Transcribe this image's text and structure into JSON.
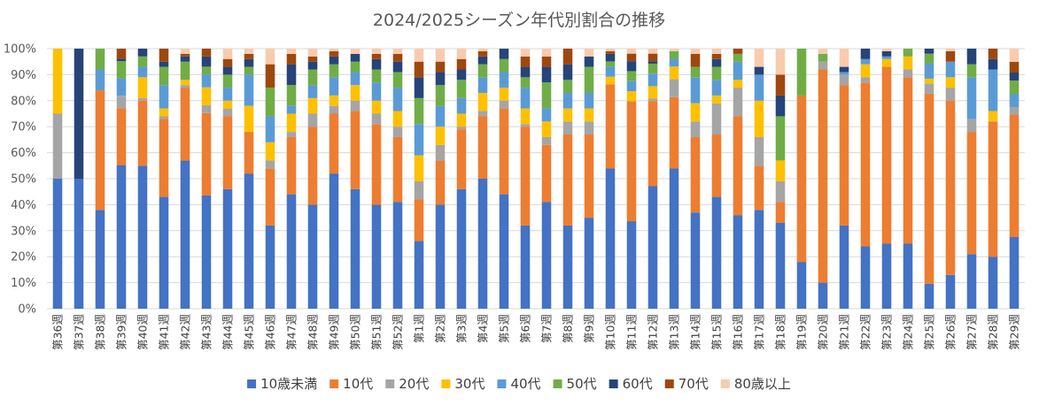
{
  "chart_data": {
    "type": "bar",
    "stacked": true,
    "title": "2024/2025シーズン年代別割合の推移",
    "xlabel": "",
    "ylabel": "",
    "ylim": [
      0,
      100
    ],
    "y_ticks": [
      "0%",
      "10%",
      "20%",
      "30%",
      "40%",
      "50%",
      "60%",
      "70%",
      "80%",
      "90%",
      "100%"
    ],
    "grid": true,
    "legend_position": "bottom",
    "categories": [
      "第36週",
      "第37週",
      "第38週",
      "第39週",
      "第40週",
      "第41週",
      "第42週",
      "第43週",
      "第44週",
      "第45週",
      "第46週",
      "第47週",
      "第48週",
      "第49週",
      "第50週",
      "第51週",
      "第52週",
      "第1週",
      "第2週",
      "第3週",
      "第4週",
      "第5週",
      "第6週",
      "第7週",
      "第8週",
      "第9週",
      "第10週",
      "第11週",
      "第12週",
      "第13週",
      "第14週",
      "第15週",
      "第16週",
      "第17週",
      "第18週",
      "第19週",
      "第20週",
      "第21週",
      "第22週",
      "第23週",
      "第24週",
      "第25週",
      "第26週",
      "第27週",
      "第28週",
      "第29週"
    ],
    "series": [
      {
        "name": "10歳未満",
        "color": "#4472c4",
        "values": [
          50,
          50,
          38,
          58,
          55,
          43,
          57,
          44,
          46,
          52,
          32,
          44,
          40,
          52,
          46,
          40,
          41,
          26,
          40,
          46,
          50,
          44,
          32,
          41,
          32,
          35,
          55,
          35,
          49,
          55,
          37,
          43,
          36,
          38,
          33,
          18,
          10,
          32,
          24,
          25,
          25,
          10,
          13,
          21,
          20,
          27
        ]
      },
      {
        "name": "10代",
        "color": "#ed7d31",
        "values": [
          0,
          0,
          46,
          23,
          25,
          30,
          28,
          32,
          28,
          16,
          22,
          22,
          30,
          23,
          30,
          31,
          25,
          16,
          17,
          23,
          24,
          33,
          38,
          22,
          35,
          32,
          33,
          48,
          34,
          28,
          29,
          24,
          38,
          17,
          8,
          64,
          82,
          54,
          63,
          68,
          64,
          76,
          67,
          47,
          52,
          46
        ]
      },
      {
        "name": "20代",
        "color": "#a5a5a5",
        "values": [
          25,
          0,
          0,
          5,
          1,
          1,
          1,
          3,
          3,
          0,
          3,
          2,
          5,
          3,
          4,
          4,
          4,
          7,
          6,
          1,
          2,
          3,
          1,
          3,
          5,
          5,
          0,
          0,
          1,
          7,
          6,
          12,
          11,
          11,
          8,
          0,
          3,
          4,
          2,
          0,
          3,
          4,
          5,
          5,
          0,
          3
        ]
      },
      {
        "name": "30代",
        "color": "#ffc000",
        "values": [
          25,
          0,
          0,
          0,
          8,
          3,
          2,
          7,
          3,
          10,
          7,
          7,
          6,
          4,
          6,
          5,
          6,
          10,
          7,
          5,
          7,
          5,
          6,
          6,
          5,
          5,
          3,
          4,
          5,
          5,
          7,
          3,
          3,
          14,
          8,
          0,
          0,
          0,
          5,
          3,
          5,
          2,
          4,
          0,
          4,
          0
        ]
      },
      {
        "name": "40代",
        "color": "#5b9bd5",
        "values": [
          0,
          0,
          8,
          7,
          4,
          9,
          0,
          5,
          5,
          12,
          10,
          3,
          5,
          7,
          5,
          7,
          9,
          12,
          8,
          6,
          6,
          6,
          8,
          5,
          6,
          6,
          4,
          4,
          5,
          3,
          10,
          6,
          7,
          10,
          0,
          0,
          0,
          1,
          2,
          1,
          0,
          6,
          6,
          16,
          16,
          5
        ]
      },
      {
        "name": "50代",
        "color": "#70ad47",
        "values": [
          0,
          0,
          8,
          7,
          4,
          7,
          7,
          3,
          5,
          3,
          11,
          8,
          6,
          5,
          4,
          5,
          6,
          10,
          8,
          7,
          5,
          5,
          4,
          10,
          5,
          10,
          2,
          4,
          4,
          3,
          4,
          5,
          3,
          0,
          17,
          18,
          3,
          0,
          0,
          0,
          3,
          4,
          0,
          5,
          0,
          5
        ]
      },
      {
        "name": "60代",
        "color": "#264478",
        "values": [
          0,
          50,
          0,
          1,
          3,
          2,
          2,
          4,
          3,
          3,
          0,
          8,
          3,
          3,
          3,
          4,
          4,
          8,
          5,
          4,
          3,
          4,
          4,
          6,
          6,
          4,
          3,
          4,
          1,
          0,
          0,
          3,
          0,
          3,
          8,
          0,
          0,
          2,
          4,
          2,
          0,
          2,
          0,
          6,
          4,
          3
        ]
      },
      {
        "name": "70代",
        "color": "#9e480e",
        "values": [
          0,
          0,
          0,
          4,
          0,
          5,
          1,
          3,
          3,
          2,
          9,
          4,
          2,
          2,
          0,
          2,
          3,
          6,
          4,
          4,
          2,
          0,
          4,
          4,
          6,
          0,
          1,
          3,
          3,
          0,
          5,
          2,
          2,
          0,
          8,
          0,
          0,
          0,
          0,
          0,
          0,
          0,
          4,
          0,
          4,
          4
        ]
      },
      {
        "name": "80歳以上",
        "color": "#f8cbad",
        "values": [
          0,
          0,
          0,
          0,
          0,
          0,
          2,
          0,
          4,
          2,
          6,
          2,
          3,
          1,
          2,
          2,
          2,
          5,
          5,
          4,
          1,
          0,
          3,
          3,
          0,
          3,
          1,
          2,
          2,
          1,
          2,
          2,
          0,
          7,
          10,
          0,
          2,
          7,
          0,
          1,
          0,
          0,
          1,
          0,
          0,
          5
        ]
      }
    ]
  }
}
